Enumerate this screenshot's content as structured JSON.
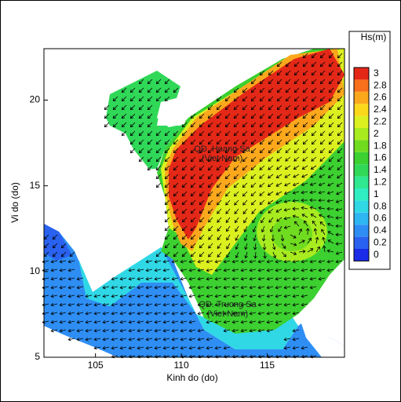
{
  "chart_data": {
    "type": "contour-map",
    "xlabel": "Kinh do (do)",
    "ylabel": "Vi do (do)",
    "xlim": [
      102,
      119.5
    ],
    "ylim": [
      5,
      23
    ],
    "xticks": [
      105,
      110,
      115
    ],
    "yticks": [
      5,
      10,
      15,
      20
    ],
    "colorbar": {
      "title": "Hs(m)",
      "levels": [
        0,
        0.2,
        0.4,
        0.6,
        0.8,
        1,
        1.2,
        1.4,
        1.6,
        1.8,
        2,
        2.2,
        2.4,
        2.6,
        2.8,
        3
      ],
      "colors": [
        "#1a2ce8",
        "#2a62f0",
        "#2e8ef4",
        "#2fb6f2",
        "#30d8e6",
        "#30eec2",
        "#30e890",
        "#30d858",
        "#3cd030",
        "#70dc20",
        "#a8ec20",
        "#dcf020",
        "#fcd81c",
        "#fca81c",
        "#f8701c",
        "#e42818"
      ]
    },
    "annotations": [
      {
        "lines": [
          "QD. Hoang Sa",
          "(Viet Nam)"
        ]
      },
      {
        "lines": [
          "QD. Truong Sa",
          "(Viet Nam)"
        ]
      }
    ]
  }
}
